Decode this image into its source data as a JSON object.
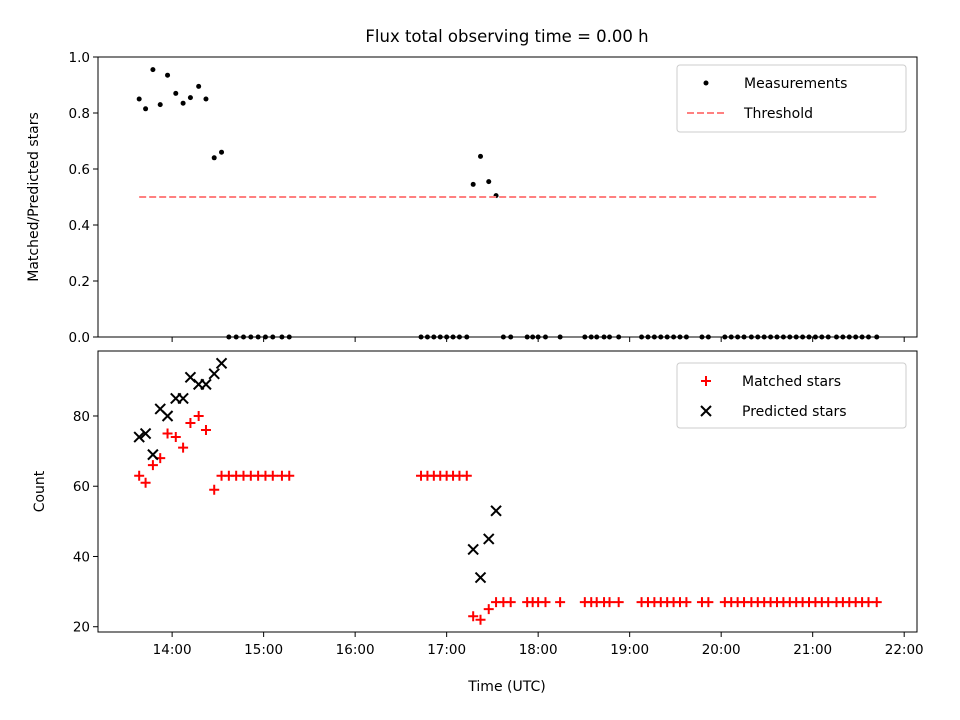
{
  "chart_data": {
    "title": "Flux total observing time = 0.00 h",
    "xlabel": "Time (UTC)",
    "xlim": [
      13.19,
      22.14
    ],
    "xticks": [
      {
        "value": 14,
        "label": "14:00"
      },
      {
        "value": 15,
        "label": "15:00"
      },
      {
        "value": 16,
        "label": "16:00"
      },
      {
        "value": 17,
        "label": "17:00"
      },
      {
        "value": 18,
        "label": "18:00"
      },
      {
        "value": 19,
        "label": "19:00"
      },
      {
        "value": 20,
        "label": "20:00"
      },
      {
        "value": 21,
        "label": "21:00"
      },
      {
        "value": 22,
        "label": "22:00"
      }
    ],
    "panels": [
      {
        "type": "scatter",
        "ylabel": "Matched/Predicted stars",
        "ylim": [
          0,
          1.0
        ],
        "yticks": [
          0.0,
          0.2,
          0.4,
          0.6,
          0.8,
          1.0
        ],
        "ytick_labels": [
          "0.0",
          "0.2",
          "0.4",
          "0.6",
          "0.8",
          "1.0"
        ],
        "legend_position": "top-right",
        "series": [
          {
            "name": "Measurements",
            "kind": "dot",
            "color": "#000000",
            "points": [
              [
                13.64,
                0.85
              ],
              [
                13.71,
                0.815
              ],
              [
                13.79,
                0.955
              ],
              [
                13.87,
                0.83
              ],
              [
                13.95,
                0.935
              ],
              [
                14.04,
                0.87
              ],
              [
                14.12,
                0.835
              ],
              [
                14.2,
                0.855
              ],
              [
                14.29,
                0.895
              ],
              [
                14.37,
                0.85
              ],
              [
                14.46,
                0.64
              ],
              [
                14.54,
                0.66
              ],
              [
                14.62,
                0.0
              ],
              [
                14.7,
                0.0
              ],
              [
                14.78,
                0.0
              ],
              [
                14.86,
                0.0
              ],
              [
                14.94,
                0.0
              ],
              [
                15.02,
                0.0
              ],
              [
                15.1,
                0.0
              ],
              [
                15.2,
                0.0
              ],
              [
                15.28,
                0.0
              ],
              [
                16.72,
                0.0
              ],
              [
                16.79,
                0.0
              ],
              [
                16.86,
                0.0
              ],
              [
                16.93,
                0.0
              ],
              [
                17.0,
                0.0
              ],
              [
                17.07,
                0.0
              ],
              [
                17.14,
                0.0
              ],
              [
                17.22,
                0.0
              ],
              [
                17.29,
                0.545
              ],
              [
                17.37,
                0.645
              ],
              [
                17.46,
                0.555
              ],
              [
                17.54,
                0.505
              ],
              [
                17.62,
                0.0
              ],
              [
                17.7,
                0.0
              ],
              [
                17.88,
                0.0
              ],
              [
                17.94,
                0.0
              ],
              [
                18.0,
                0.0
              ],
              [
                18.08,
                0.0
              ],
              [
                18.24,
                0.0
              ],
              [
                18.51,
                0.0
              ],
              [
                18.58,
                0.0
              ],
              [
                18.64,
                0.0
              ],
              [
                18.72,
                0.0
              ],
              [
                18.78,
                0.0
              ],
              [
                18.88,
                0.0
              ],
              [
                19.13,
                0.0
              ],
              [
                19.2,
                0.0
              ],
              [
                19.27,
                0.0
              ],
              [
                19.34,
                0.0
              ],
              [
                19.41,
                0.0
              ],
              [
                19.48,
                0.0
              ],
              [
                19.55,
                0.0
              ],
              [
                19.62,
                0.0
              ],
              [
                19.79,
                0.0
              ],
              [
                19.86,
                0.0
              ],
              [
                20.04,
                0.0
              ],
              [
                20.11,
                0.0
              ],
              [
                20.18,
                0.0
              ],
              [
                20.25,
                0.0
              ],
              [
                20.33,
                0.0
              ],
              [
                20.4,
                0.0
              ],
              [
                20.47,
                0.0
              ],
              [
                20.54,
                0.0
              ],
              [
                20.61,
                0.0
              ],
              [
                20.68,
                0.0
              ],
              [
                20.75,
                0.0
              ],
              [
                20.82,
                0.0
              ],
              [
                20.89,
                0.0
              ],
              [
                20.96,
                0.0
              ],
              [
                21.03,
                0.0
              ],
              [
                21.1,
                0.0
              ],
              [
                21.17,
                0.0
              ],
              [
                21.26,
                0.0
              ],
              [
                21.33,
                0.0
              ],
              [
                21.4,
                0.0
              ],
              [
                21.47,
                0.0
              ],
              [
                21.54,
                0.0
              ],
              [
                21.61,
                0.0
              ],
              [
                21.7,
                0.0
              ]
            ]
          },
          {
            "name": "Threshold",
            "kind": "dashed-line",
            "color": "#ff8080",
            "points": [
              [
                13.64,
                0.5
              ],
              [
                21.7,
                0.5
              ]
            ]
          }
        ]
      },
      {
        "type": "scatter",
        "ylabel": "Count",
        "ylim": [
          18.5,
          98.5
        ],
        "yticks": [
          20,
          40,
          60,
          80
        ],
        "ytick_labels": [
          "20",
          "40",
          "60",
          "80"
        ],
        "legend_position": "top-right",
        "series": [
          {
            "name": "Matched stars",
            "kind": "plus",
            "color": "#ff0000",
            "points": [
              [
                13.64,
                63
              ],
              [
                13.71,
                61
              ],
              [
                13.79,
                66
              ],
              [
                13.87,
                68
              ],
              [
                13.95,
                75
              ],
              [
                14.04,
                74
              ],
              [
                14.12,
                71
              ],
              [
                14.2,
                78
              ],
              [
                14.29,
                80
              ],
              [
                14.37,
                76
              ],
              [
                14.46,
                59
              ],
              [
                14.54,
                63
              ],
              [
                14.62,
                63
              ],
              [
                14.7,
                63
              ],
              [
                14.78,
                63
              ],
              [
                14.86,
                63
              ],
              [
                14.94,
                63
              ],
              [
                15.02,
                63
              ],
              [
                15.1,
                63
              ],
              [
                15.2,
                63
              ],
              [
                15.28,
                63
              ],
              [
                16.72,
                63
              ],
              [
                16.79,
                63
              ],
              [
                16.86,
                63
              ],
              [
                16.93,
                63
              ],
              [
                17.0,
                63
              ],
              [
                17.07,
                63
              ],
              [
                17.14,
                63
              ],
              [
                17.22,
                63
              ],
              [
                17.29,
                23
              ],
              [
                17.37,
                22
              ],
              [
                17.46,
                25
              ],
              [
                17.54,
                27
              ],
              [
                17.62,
                27
              ],
              [
                17.7,
                27
              ],
              [
                17.88,
                27
              ],
              [
                17.94,
                27
              ],
              [
                18.0,
                27
              ],
              [
                18.08,
                27
              ],
              [
                18.24,
                27
              ],
              [
                18.51,
                27
              ],
              [
                18.58,
                27
              ],
              [
                18.64,
                27
              ],
              [
                18.72,
                27
              ],
              [
                18.78,
                27
              ],
              [
                18.88,
                27
              ],
              [
                19.13,
                27
              ],
              [
                19.2,
                27
              ],
              [
                19.27,
                27
              ],
              [
                19.34,
                27
              ],
              [
                19.41,
                27
              ],
              [
                19.48,
                27
              ],
              [
                19.55,
                27
              ],
              [
                19.62,
                27
              ],
              [
                19.79,
                27
              ],
              [
                19.86,
                27
              ],
              [
                20.04,
                27
              ],
              [
                20.11,
                27
              ],
              [
                20.18,
                27
              ],
              [
                20.25,
                27
              ],
              [
                20.33,
                27
              ],
              [
                20.4,
                27
              ],
              [
                20.47,
                27
              ],
              [
                20.54,
                27
              ],
              [
                20.61,
                27
              ],
              [
                20.68,
                27
              ],
              [
                20.75,
                27
              ],
              [
                20.82,
                27
              ],
              [
                20.89,
                27
              ],
              [
                20.96,
                27
              ],
              [
                21.03,
                27
              ],
              [
                21.1,
                27
              ],
              [
                21.17,
                27
              ],
              [
                21.26,
                27
              ],
              [
                21.33,
                27
              ],
              [
                21.4,
                27
              ],
              [
                21.47,
                27
              ],
              [
                21.54,
                27
              ],
              [
                21.61,
                27
              ],
              [
                21.7,
                27
              ]
            ]
          },
          {
            "name": "Predicted stars",
            "kind": "x",
            "color": "#000000",
            "points": [
              [
                13.64,
                74
              ],
              [
                13.71,
                75
              ],
              [
                13.79,
                69
              ],
              [
                13.87,
                82
              ],
              [
                13.95,
                80
              ],
              [
                14.04,
                85
              ],
              [
                14.12,
                85
              ],
              [
                14.2,
                91
              ],
              [
                14.29,
                89
              ],
              [
                14.37,
                89
              ],
              [
                14.46,
                92
              ],
              [
                14.54,
                95
              ],
              [
                17.29,
                42
              ],
              [
                17.37,
                34
              ],
              [
                17.46,
                45
              ],
              [
                17.54,
                53
              ]
            ]
          }
        ]
      }
    ]
  }
}
